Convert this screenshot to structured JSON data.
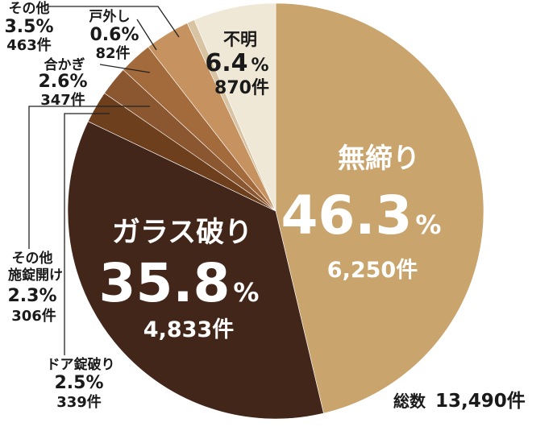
{
  "chart_data": {
    "type": "pie",
    "total_label": "総数",
    "total_value": "13,490件",
    "slices": [
      {
        "label": "無締り",
        "percent": 46.3,
        "count": 6250,
        "percent_text": "46.3",
        "count_text": "6,250件",
        "color": "#c9a46c"
      },
      {
        "label": "ガラス破り",
        "percent": 35.8,
        "count": 4833,
        "percent_text": "35.8",
        "count_text": "4,833件",
        "color": "#43261a"
      },
      {
        "label": "ドア錠破り",
        "percent": 2.5,
        "count": 339,
        "percent_text": "2.5%",
        "count_text": "339件",
        "color": "#6e3f1d"
      },
      {
        "label": "その他施錠開け",
        "label_lines": [
          "その他",
          "施錠開け"
        ],
        "percent": 2.3,
        "count": 306,
        "percent_text": "2.3%",
        "count_text": "306件",
        "color": "#8a5730"
      },
      {
        "label": "合かぎ",
        "percent": 2.6,
        "count": 347,
        "percent_text": "2.6%",
        "count_text": "347件",
        "color": "#a36a3c"
      },
      {
        "label": "その他",
        "percent": 3.5,
        "count": 463,
        "percent_text": "3.5%",
        "count_text": "463件",
        "color": "#c6925f"
      },
      {
        "label": "戸外し",
        "percent": 0.6,
        "count": 82,
        "percent_text": "0.6%",
        "count_text": "82件",
        "color": "#d8c3a3"
      },
      {
        "label": "不明",
        "percent": 6.4,
        "count": 870,
        "percent_text": "6.4",
        "count_text": "870件",
        "color": "#f0e8d6"
      }
    ],
    "percent_suffix": "%"
  }
}
